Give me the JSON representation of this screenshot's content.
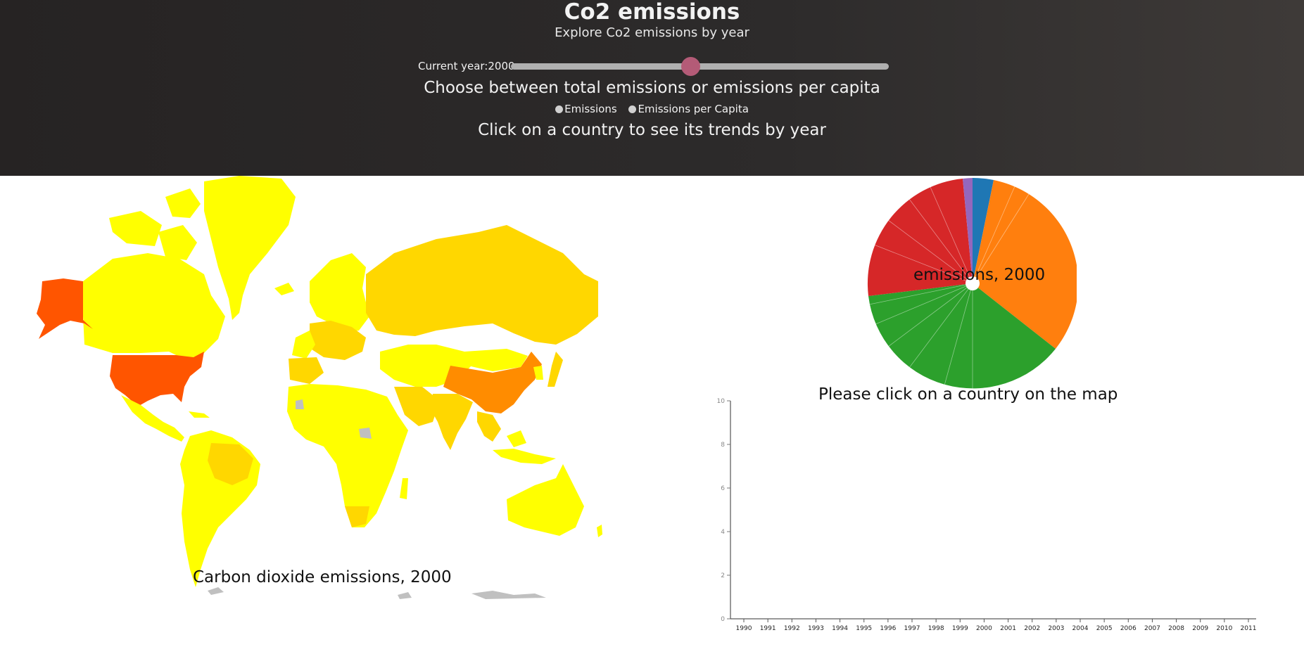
{
  "header": {
    "title": "Co2 emissions",
    "subtitle": "Explore Co2 emissions by year",
    "slider_label": "Current year:2000",
    "year_slider_value": 2000,
    "year_slider_range": [
      1990,
      2011
    ],
    "choose_text": "Choose between total emissions or emissions per capita",
    "radio_emissions": "Emissions",
    "radio_per_capita": "Emissions per Capita",
    "click_hint": "Click on a country to see its trends by year"
  },
  "map": {
    "caption": "Carbon dioxide emissions, 2000"
  },
  "pie": {
    "center_label": "emissions, 2000",
    "hint": "Please click on a country on the map"
  },
  "colors": {
    "slider_thumb": "#b45b77",
    "map_low": "#ffff00",
    "map_mid": "#ffd700",
    "map_high": "#ff8c00",
    "map_top": "#ff5500",
    "map_nodata": "#c0c0c0",
    "pie_blue": "#1f77b4",
    "pie_orange": "#ff7f0e",
    "pie_green": "#2ca02c",
    "pie_red": "#d62728",
    "pie_purple": "#9467bd"
  },
  "chart_data": {
    "type": "line",
    "title": "",
    "xlabel": "",
    "ylabel": "",
    "x": [
      "1990",
      "1991",
      "1992",
      "1993",
      "1994",
      "1995",
      "1996",
      "1997",
      "1998",
      "1999",
      "2000",
      "2001",
      "2002",
      "2003",
      "2004",
      "2005",
      "2006",
      "2007",
      "2008",
      "2009",
      "2010",
      "2011"
    ],
    "yticks": [
      "0",
      "2",
      "4",
      "6",
      "8",
      "10"
    ],
    "ylim": [
      0,
      10
    ],
    "series": []
  }
}
